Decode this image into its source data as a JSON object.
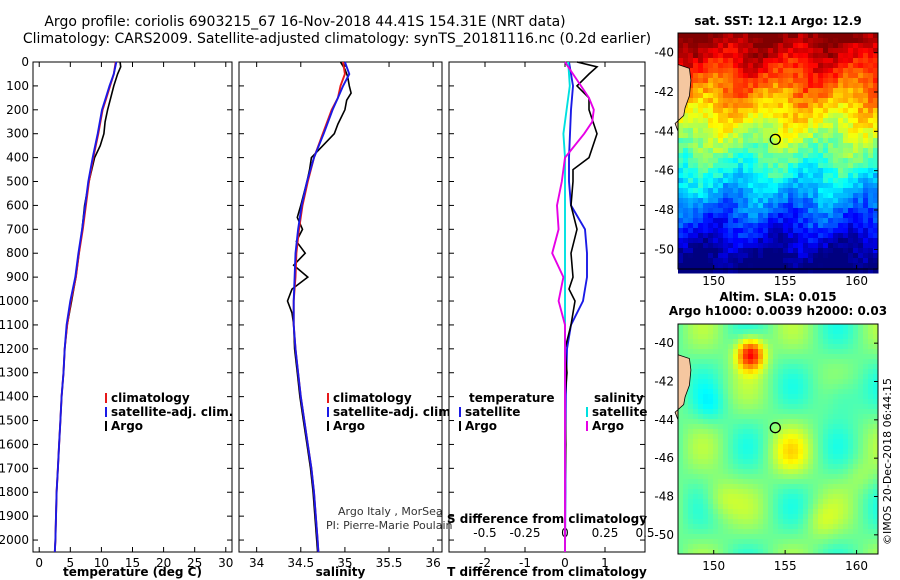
{
  "header": {
    "line1": "Argo profile: coriolis 6903215_67 16-Nov-2018 44.41S 154.31E (NRT data)",
    "line2": "Climatology: CARS2009. Satellite-adjusted climatology: synTS_20181116.nc (0.2d earlier)"
  },
  "attribution": {
    "group": "Argo Italy , MorSea",
    "pi": "PI: Pierre-Marie Poulain"
  },
  "watermark": "©IMOS 20-Dec-2018 06:44:15",
  "colors": {
    "climatology": "#e6191a",
    "satellite": "#1a1ae6",
    "argo": "#000000",
    "satellite_salinity": "#00e0e0",
    "argo_salinity": "#e600e6"
  },
  "depth_axis": {
    "ticks": [
      0,
      100,
      200,
      300,
      400,
      500,
      600,
      700,
      800,
      900,
      1000,
      1100,
      1200,
      1300,
      1400,
      1500,
      1600,
      1700,
      1800,
      1900,
      2000
    ],
    "tick_labels": [
      "0",
      "100",
      "200",
      "300",
      "400",
      "500",
      "600",
      "700",
      "800",
      "900",
      "1000",
      "1100",
      "1200",
      "1300",
      "1400",
      "1500",
      "1600",
      "1700",
      "1800",
      "1900",
      "2000"
    ],
    "range": [
      0,
      2050
    ]
  },
  "chart_data": [
    {
      "type": "line",
      "id": "temperature",
      "xlabel": "temperature (deg C)",
      "xlim": [
        -1,
        31
      ],
      "xticks": [
        0,
        5,
        10,
        15,
        20,
        25,
        30
      ],
      "xtick_labels": [
        "0",
        "5",
        "10",
        "15",
        "20",
        "25",
        "30"
      ],
      "legend": [
        "climatology",
        "satellite-adj. clim.",
        "Argo"
      ],
      "series": [
        {
          "name": "climatology",
          "color": "climatology",
          "depth": [
            0,
            50,
            100,
            150,
            200,
            300,
            400,
            500,
            600,
            700,
            800,
            900,
            1000,
            1100,
            1200,
            1300,
            1400,
            1500,
            1600,
            1700,
            1800,
            1900,
            2000,
            2050
          ],
          "values": [
            12.3,
            12.0,
            11.4,
            10.8,
            10.2,
            9.5,
            8.7,
            8.0,
            7.5,
            7.0,
            6.4,
            5.9,
            5.1,
            4.5,
            4.1,
            3.9,
            3.6,
            3.4,
            3.2,
            3.0,
            2.8,
            2.7,
            2.6,
            2.5
          ]
        },
        {
          "name": "satellite-adj. clim.",
          "color": "satellite",
          "depth": [
            0,
            50,
            100,
            150,
            200,
            300,
            400,
            500,
            600,
            700,
            800,
            900,
            1000,
            1100,
            1200,
            1300,
            1400,
            1500,
            1600,
            1700,
            1800,
            1900,
            2000,
            2050
          ],
          "values": [
            12.4,
            12.0,
            11.3,
            10.7,
            10.1,
            9.4,
            8.6,
            7.9,
            7.4,
            6.9,
            6.3,
            5.8,
            5.0,
            4.4,
            4.1,
            3.9,
            3.6,
            3.4,
            3.2,
            3.0,
            2.8,
            2.7,
            2.6,
            2.5
          ]
        },
        {
          "name": "Argo",
          "color": "argo",
          "depth": [
            0,
            20,
            50,
            100,
            150,
            200,
            250,
            300,
            350,
            400,
            500,
            600,
            700,
            800,
            900,
            1000,
            1100,
            1200,
            1300,
            1400,
            1500,
            1600,
            1700,
            1800,
            1900,
            2000,
            2050
          ],
          "values": [
            13.0,
            13.1,
            12.6,
            12.0,
            11.5,
            11.0,
            10.6,
            10.4,
            9.8,
            8.9,
            8.0,
            7.3,
            6.9,
            6.4,
            5.9,
            5.2,
            4.5,
            4.1,
            3.9,
            3.6,
            3.4,
            3.2,
            3.0,
            2.8,
            2.7,
            2.6,
            2.5
          ]
        }
      ]
    },
    {
      "type": "line",
      "id": "salinity",
      "xlabel": "salinity",
      "xlim": [
        33.8,
        36.1
      ],
      "xticks": [
        34,
        34.5,
        35,
        35.5,
        36
      ],
      "xtick_labels": [
        "34",
        "34.5",
        "35",
        "35.5",
        "36"
      ],
      "legend": [
        "climatology",
        "satellite-adj. clim.",
        "Argo"
      ],
      "series": [
        {
          "name": "climatology",
          "color": "climatology",
          "depth": [
            0,
            50,
            100,
            150,
            200,
            300,
            400,
            500,
            600,
            700,
            800,
            900,
            1000,
            1100,
            1200,
            1300,
            1400,
            1500,
            1600,
            1700,
            1800,
            1900,
            2000,
            2050
          ],
          "values": [
            34.98,
            35.0,
            34.95,
            34.92,
            34.85,
            34.75,
            34.65,
            34.58,
            34.52,
            34.48,
            34.45,
            34.44,
            34.42,
            34.42,
            34.44,
            34.47,
            34.5,
            34.54,
            34.58,
            34.62,
            34.65,
            34.67,
            34.69,
            34.7
          ]
        },
        {
          "name": "satellite-adj. clim.",
          "color": "satellite",
          "depth": [
            0,
            50,
            100,
            150,
            200,
            300,
            400,
            500,
            600,
            700,
            800,
            900,
            1000,
            1100,
            1200,
            1300,
            1400,
            1500,
            1600,
            1700,
            1800,
            1900,
            2000,
            2050
          ],
          "values": [
            35.0,
            35.05,
            34.98,
            34.92,
            34.86,
            34.76,
            34.65,
            34.57,
            34.51,
            34.47,
            34.44,
            34.43,
            34.42,
            34.42,
            34.44,
            34.47,
            34.5,
            34.54,
            34.58,
            34.62,
            34.65,
            34.67,
            34.69,
            34.7
          ]
        },
        {
          "name": "Argo",
          "color": "argo",
          "depth": [
            0,
            30,
            60,
            100,
            130,
            160,
            200,
            260,
            300,
            350,
            400,
            450,
            500,
            600,
            650,
            700,
            750,
            800,
            850,
            900,
            950,
            1000,
            1050,
            1100,
            1200,
            1300,
            1400,
            1500,
            1600,
            1700,
            1800,
            1900,
            2000,
            2050
          ],
          "values": [
            34.95,
            35.0,
            35.03,
            35.05,
            35.07,
            35.02,
            35.0,
            34.92,
            34.88,
            34.75,
            34.62,
            34.6,
            34.57,
            34.5,
            34.46,
            34.52,
            34.45,
            34.55,
            34.42,
            34.58,
            34.4,
            34.35,
            34.4,
            34.42,
            34.43,
            34.46,
            34.49,
            34.53,
            34.57,
            34.61,
            34.64,
            34.66,
            34.68,
            34.69
          ]
        }
      ]
    },
    {
      "type": "line",
      "id": "difference",
      "xlabel": "T difference from climatology",
      "xlabel_top": "S difference from climatology",
      "xlim": [
        -2.9,
        2.0
      ],
      "xticks": [
        -2,
        -1,
        0,
        1
      ],
      "xtick_labels": [
        "-2",
        "-1",
        "0",
        "1"
      ],
      "sticks": [
        -0.5,
        -0.25,
        0,
        0.25,
        0.5
      ],
      "stick_labels": [
        "-0.5",
        "-0.25",
        "0",
        "0.25",
        "0.5"
      ],
      "slim": [
        -0.725,
        0.5
      ],
      "legend_temperature_title": "temperature",
      "legend_salinity_title": "salinity",
      "legend_temperature": [
        "satellite",
        "Argo"
      ],
      "legend_salinity": [
        "satellite",
        "Argo"
      ],
      "series": [
        {
          "name": "satellite",
          "kind": "T",
          "color": "satellite",
          "depth": [
            0,
            100,
            200,
            400,
            500,
            600,
            700,
            800,
            900,
            1000,
            1100,
            1200,
            1400,
            1600,
            1800,
            2050
          ],
          "values": [
            0.1,
            0.2,
            0.15,
            0.1,
            0.1,
            0.15,
            0.5,
            0.55,
            0.55,
            0.45,
            0.15,
            0.05,
            0.02,
            0.01,
            0.01,
            0.0
          ]
        },
        {
          "name": "Argo",
          "kind": "T",
          "color": "argo",
          "depth": [
            0,
            20,
            50,
            100,
            150,
            200,
            300,
            400,
            450,
            500,
            600,
            700,
            800,
            900,
            950,
            1000,
            1100,
            1200,
            1300,
            1400,
            1600,
            1800,
            2050
          ],
          "values": [
            0.3,
            0.8,
            0.6,
            0.3,
            0.6,
            0.6,
            0.8,
            0.6,
            0.2,
            0.2,
            0.15,
            0.3,
            0.15,
            0.2,
            0.1,
            0.25,
            0.15,
            0.0,
            0.05,
            0.0,
            0.02,
            0.0,
            0.0
          ]
        },
        {
          "name": "satellite",
          "kind": "S",
          "color": "satellite_salinity",
          "depth": [
            0,
            100,
            200,
            300,
            400,
            500,
            700,
            900,
            1100,
            1400,
            1700,
            2050
          ],
          "values": [
            0.02,
            0.03,
            0.01,
            -0.01,
            0.0,
            0.0,
            0.0,
            0.0,
            0.0,
            0.0,
            0.0,
            0.0
          ]
        },
        {
          "name": "Argo",
          "kind": "S",
          "color": "argo_salinity",
          "depth": [
            0,
            50,
            100,
            150,
            200,
            250,
            300,
            400,
            500,
            600,
            700,
            800,
            900,
            1000,
            1100,
            1200,
            1400,
            1600,
            1800,
            2050
          ],
          "values": [
            0.0,
            0.05,
            0.1,
            0.15,
            0.18,
            0.17,
            0.12,
            0.0,
            -0.02,
            -0.05,
            -0.04,
            -0.08,
            -0.01,
            -0.04,
            0.0,
            0.0,
            0.0,
            0.0,
            0.0,
            0.0
          ]
        }
      ]
    }
  ],
  "maps": [
    {
      "id": "sst",
      "title": "sat. SST: 12.1 Argo: 12.9",
      "lat_ticks": [
        -40,
        -42,
        -44,
        -46,
        -48,
        -50
      ],
      "lat_labels": [
        "-40",
        "-42",
        "-44",
        "-46",
        "-48",
        "-50"
      ],
      "lon_ticks": [
        150,
        155,
        160
      ],
      "lon_labels": [
        "150",
        "155",
        "160"
      ],
      "float_lon": 154.31,
      "float_lat": -44.41
    },
    {
      "id": "sla",
      "title": "Altim. SLA: 0.015",
      "title2": "Argo h1000: 0.0039 h2000: 0.03",
      "lat_ticks": [
        -40,
        -42,
        -44,
        -46,
        -48,
        -50
      ],
      "lat_labels": [
        "-40",
        "-42",
        "-44",
        "-46",
        "-48",
        "-50"
      ],
      "lon_ticks": [
        150,
        155,
        160
      ],
      "lon_labels": [
        "150",
        "155",
        "160"
      ],
      "float_lon": 154.31,
      "float_lat": -44.41
    }
  ]
}
